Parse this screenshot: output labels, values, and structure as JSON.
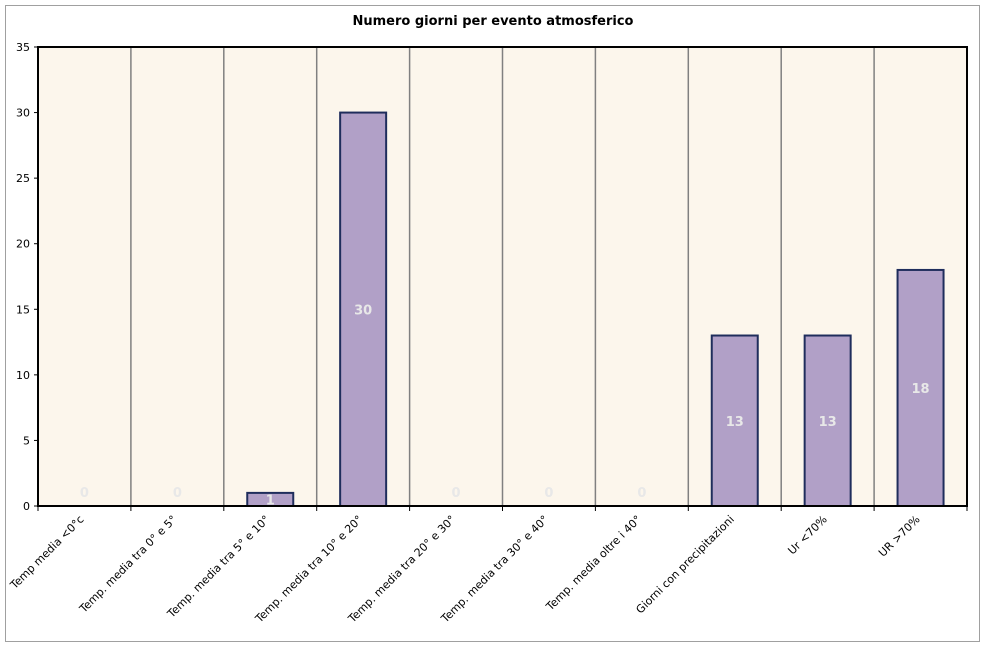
{
  "chart_data": {
    "type": "bar",
    "title": "Numero giorni per evento atmosferico",
    "categories": [
      "Temp media <0°c",
      "Temp. media tra 0° e 5°",
      "Temp. media tra 5° e 10°",
      "Temp. media tra 10° e 20°",
      "Temp. media tra 20° e 30°",
      "Temp. media tra 30° e 40°",
      "Temp. media oltre i 40°",
      "Giorni con precipitazioni",
      "Ur <70%",
      "UR >70%"
    ],
    "values": [
      0,
      0,
      1,
      30,
      0,
      0,
      0,
      13,
      13,
      18
    ],
    "ylim": [
      0,
      35
    ],
    "yticks": [
      0,
      5,
      10,
      15,
      20,
      25,
      30,
      35
    ],
    "grid": "vertical",
    "colors": {
      "bar_fill": "#b1a0c7",
      "bar_stroke": "#1f2d5c",
      "plot_bg": "#fcf6ec",
      "gridline": "#808080",
      "data_label": "#e8e8e8"
    }
  }
}
